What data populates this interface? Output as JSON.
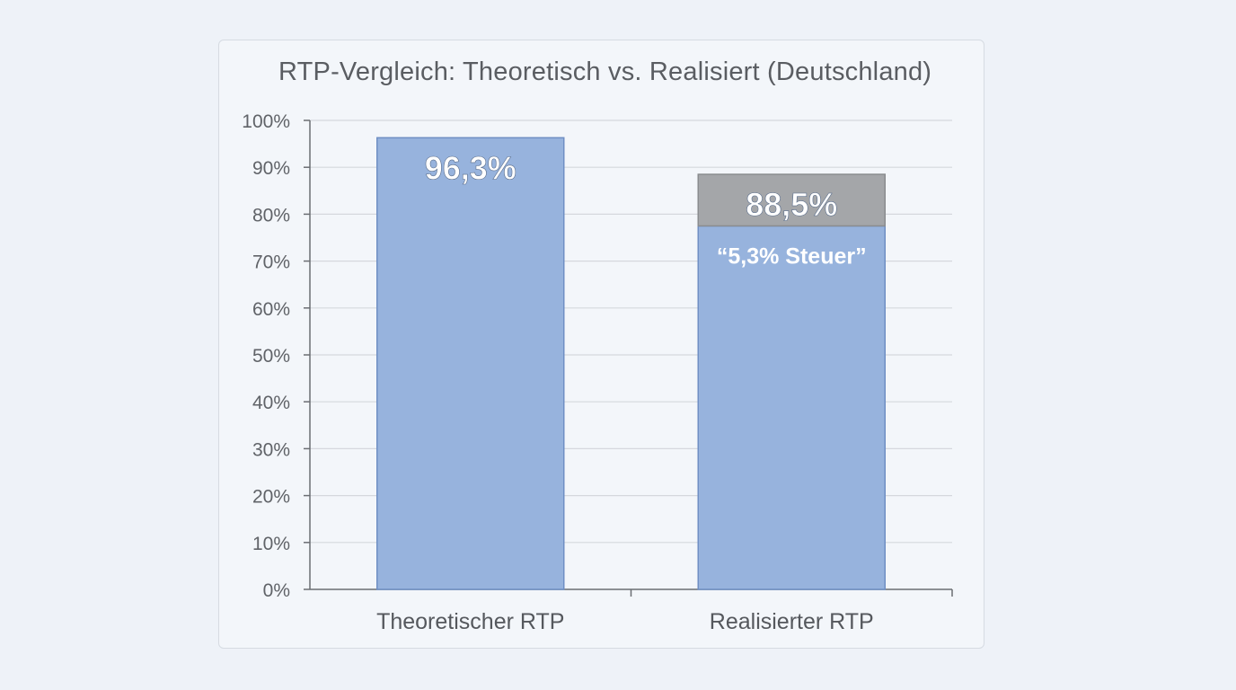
{
  "chart_data": {
    "type": "bar",
    "title": "RTP-Vergleich: Theoretisch vs. Realisiert (Deutschland)",
    "categories": [
      "Theoretischer RTP",
      "Realisierter RTP"
    ],
    "series": [
      {
        "values": [
          96.3,
          77.5
        ],
        "color": "#97b3dd"
      },
      {
        "values": [
          0,
          11.0
        ],
        "color": "#a4a6a9"
      }
    ],
    "data_labels": [
      "96,3%",
      "88,5%"
    ],
    "annotations": [
      {
        "category": "Realisierter RTP",
        "text": "“5,3% Steuer”"
      }
    ],
    "yticks": [
      0,
      10,
      20,
      30,
      40,
      50,
      60,
      70,
      80,
      90,
      100
    ],
    "ytick_labels": [
      "0%",
      "10%",
      "20%",
      "30%",
      "40%",
      "50%",
      "60%",
      "70%",
      "80%",
      "90%",
      "100%"
    ],
    "ylim": [
      0,
      100
    ],
    "xlabel": "",
    "ylabel": "",
    "grid": true,
    "legend": "none"
  }
}
